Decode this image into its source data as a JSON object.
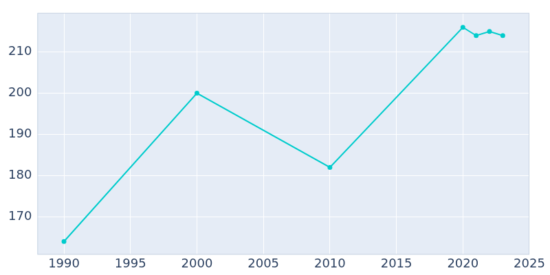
{
  "chart_data": {
    "type": "line",
    "x": [
      1990,
      2000,
      2010,
      2020,
      2021,
      2022,
      2023
    ],
    "values": [
      164,
      200,
      182,
      216,
      214,
      215,
      214
    ],
    "color": "#00cccc",
    "marker": "circle",
    "xlim": [
      1988,
      2025
    ],
    "xticks": [
      1990,
      1995,
      2000,
      2005,
      2010,
      2015,
      2020,
      2025
    ],
    "ylim": [
      160.8,
      219.5
    ],
    "yticks": [
      170,
      180,
      190,
      200,
      210
    ],
    "grid": true
  }
}
